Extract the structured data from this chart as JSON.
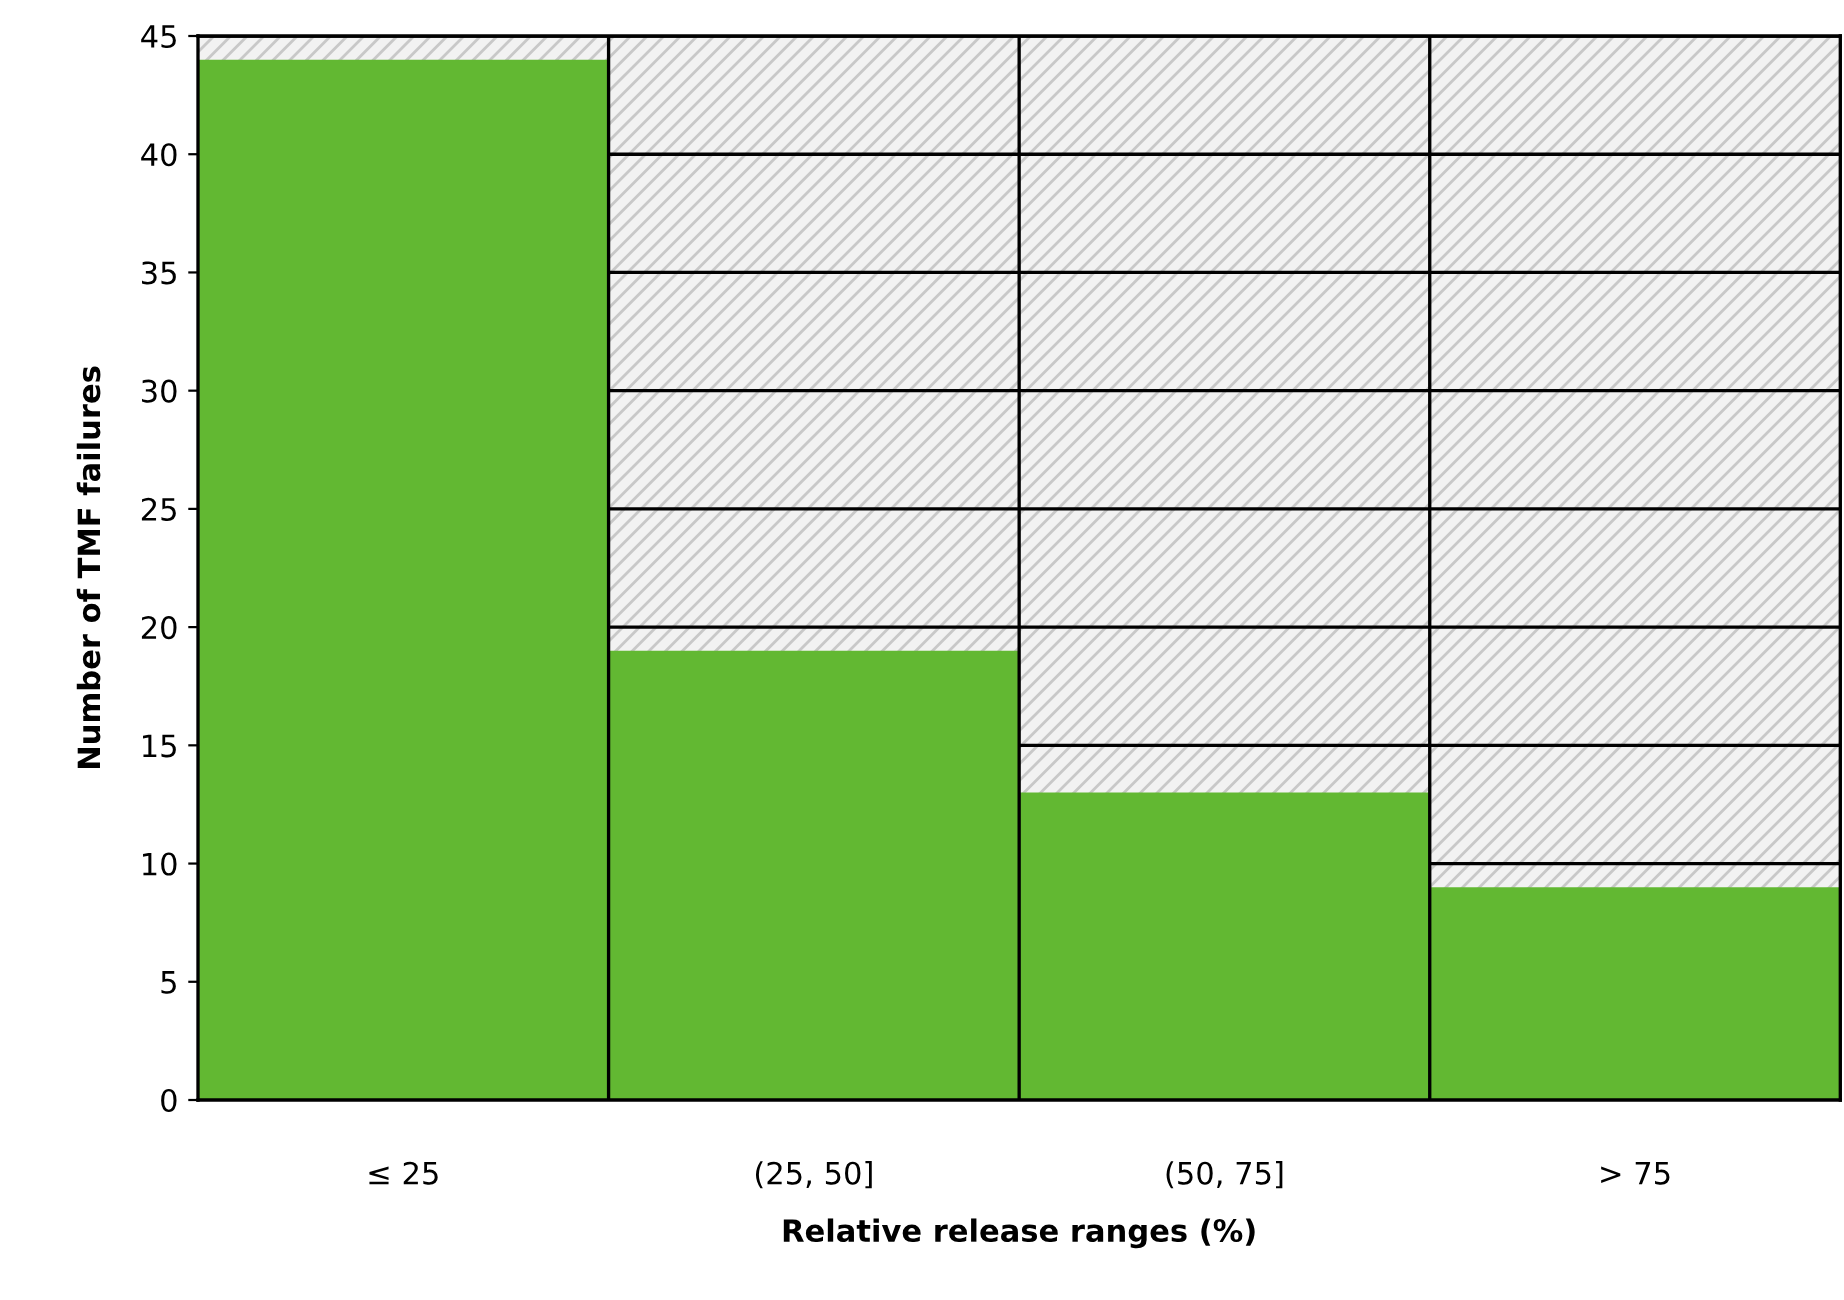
{
  "chart_data": {
    "type": "bar",
    "xlabel": "Relative release ranges (%)",
    "ylabel": "Number of TMF failures",
    "categories": [
      "≤ 25",
      "(25, 50]",
      "(50, 75]",
      "> 75"
    ],
    "values": [
      44,
      19,
      13,
      9
    ],
    "color": "#62b832",
    "ylim": [
      0,
      45
    ],
    "yticks": [
      0,
      5,
      10,
      15,
      20,
      25,
      30,
      35,
      40,
      45
    ],
    "grid": true,
    "legend": false
  }
}
